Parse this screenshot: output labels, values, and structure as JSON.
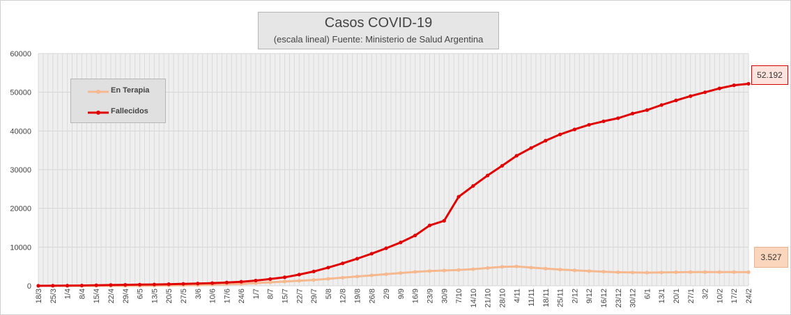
{
  "chart_data": {
    "type": "line",
    "title": "Casos COVID-19",
    "subtitle": "(escala lineal) Fuente: Ministerio de Salud Argentina",
    "ylim": [
      0,
      60000
    ],
    "y_ticks": [
      0,
      10000,
      20000,
      30000,
      40000,
      50000,
      60000
    ],
    "x_ticks": [
      "18/3",
      "25/3",
      "1/4",
      "8/4",
      "15/4",
      "22/4",
      "29/4",
      "6/5",
      "13/5",
      "20/5",
      "27/5",
      "3/6",
      "10/6",
      "17/6",
      "24/6",
      "1/7",
      "8/7",
      "15/7",
      "22/7",
      "29/7",
      "5/8",
      "12/8",
      "19/8",
      "26/8",
      "2/9",
      "9/9",
      "16/9",
      "23/9",
      "30/9",
      "7/10",
      "14/10",
      "21/10",
      "28/10",
      "4/11",
      "11/11",
      "18/11",
      "25/11",
      "2/12",
      "9/12",
      "16/12",
      "23/12",
      "30/12",
      "6/1",
      "13/1",
      "20/1",
      "27/1",
      "3/2",
      "10/2",
      "17/2",
      "24/2"
    ],
    "grid": true,
    "legend_position": "top-left",
    "series": [
      {
        "name": "En Terapia",
        "color": "#f6b88f",
        "values": [
          0,
          0,
          0,
          0,
          0,
          0,
          0,
          0,
          50,
          100,
          150,
          200,
          300,
          400,
          500,
          700,
          900,
          1100,
          1300,
          1500,
          1800,
          2100,
          2400,
          2700,
          3000,
          3300,
          3600,
          3800,
          3950,
          4100,
          4300,
          4600,
          4900,
          5000,
          4700,
          4450,
          4200,
          4000,
          3800,
          3650,
          3500,
          3450,
          3400,
          3450,
          3500,
          3550,
          3550,
          3550,
          3550,
          3527
        ],
        "end_label": "3.527"
      },
      {
        "name": "Fallecidos",
        "color": "#e00000",
        "values": [
          0,
          20,
          40,
          80,
          150,
          200,
          250,
          300,
          350,
          420,
          500,
          580,
          700,
          850,
          1050,
          1350,
          1750,
          2200,
          2900,
          3700,
          4700,
          5800,
          7000,
          8300,
          9700,
          11200,
          13000,
          15600,
          16800,
          23000,
          25800,
          28500,
          31000,
          33600,
          35600,
          37500,
          39100,
          40400,
          41600,
          42500,
          43300,
          44500,
          45400,
          46700,
          47900,
          49000,
          50000,
          51000,
          51800,
          52192
        ],
        "end_label": "52.192"
      }
    ]
  }
}
